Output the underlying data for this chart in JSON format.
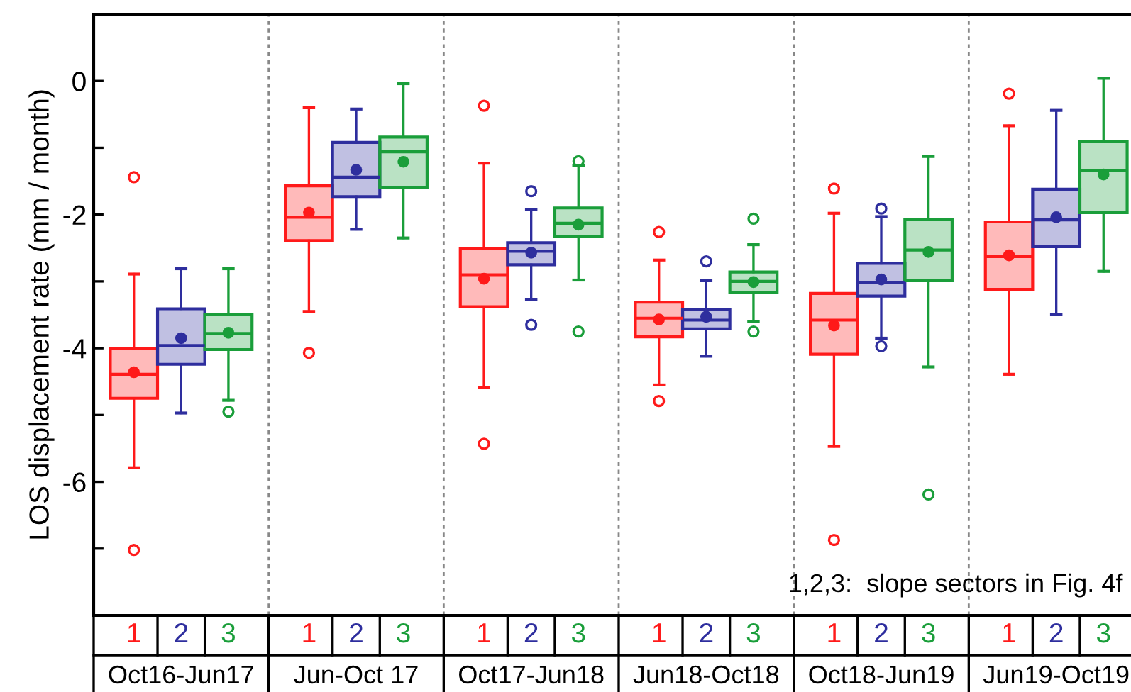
{
  "chart_data": {
    "type": "box",
    "ylabel": "LOS displacement rate (mm / month)",
    "categories": [
      "Oct16-Jun17",
      "Jun-Oct 17",
      "Oct17-Jun18",
      "Jun18-Oct18",
      "Oct18-Jun19",
      "Jun19-Oct19"
    ],
    "ylim": [
      -8,
      1
    ],
    "yticks": [
      0,
      {
        "value": -1,
        "label": null
      },
      -2,
      {
        "value": -3,
        "label": null
      },
      -4,
      {
        "value": -5,
        "label": null
      },
      -6,
      {
        "value": -7,
        "label": null
      }
    ],
    "grid": false,
    "annotations": [
      "1,2,3:  slope sectors in Fig. 4f"
    ],
    "series": [
      {
        "name": "1",
        "color": "#ff1a1a",
        "boxes": [
          {
            "low": -5.79,
            "q1": -4.75,
            "median": -4.39,
            "q3": -4.0,
            "high": -2.89,
            "mean": -4.36,
            "outliers": [
              -1.44,
              -7.02
            ]
          },
          {
            "low": -3.45,
            "q1": -2.39,
            "median": -2.04,
            "q3": -1.57,
            "high": -0.4,
            "mean": -1.97,
            "outliers": [
              -4.07
            ]
          },
          {
            "low": -4.59,
            "q1": -3.38,
            "median": -2.9,
            "q3": -2.51,
            "high": -1.23,
            "mean": -2.96,
            "outliers": [
              -0.37,
              -5.43
            ]
          },
          {
            "low": -4.55,
            "q1": -3.83,
            "median": -3.55,
            "q3": -3.31,
            "high": -2.68,
            "mean": -3.57,
            "outliers": [
              -2.26,
              -4.79
            ]
          },
          {
            "low": -5.47,
            "q1": -4.09,
            "median": -3.58,
            "q3": -3.18,
            "high": -1.98,
            "mean": -3.66,
            "outliers": [
              -1.61,
              -6.87
            ]
          },
          {
            "low": -4.39,
            "q1": -3.12,
            "median": -2.63,
            "q3": -2.11,
            "high": -0.67,
            "mean": -2.61,
            "outliers": [
              -0.19
            ]
          }
        ]
      },
      {
        "name": "2",
        "color": "#2e2e9e",
        "boxes": [
          {
            "low": -4.97,
            "q1": -4.24,
            "median": -3.96,
            "q3": -3.41,
            "high": -2.81,
            "mean": -3.85
          },
          {
            "low": -2.22,
            "q1": -1.73,
            "median": -1.44,
            "q3": -0.92,
            "high": -0.42,
            "mean": -1.33
          },
          {
            "low": -3.27,
            "q1": -2.75,
            "median": -2.55,
            "q3": -2.42,
            "high": -1.92,
            "mean": -2.57,
            "outliers": [
              -1.65,
              -3.65
            ]
          },
          {
            "low": -4.12,
            "q1": -3.71,
            "median": -3.58,
            "q3": -3.42,
            "high": -2.99,
            "mean": -3.53,
            "outliers": [
              -2.7
            ]
          },
          {
            "low": -3.85,
            "q1": -3.22,
            "median": -3.02,
            "q3": -2.73,
            "high": -2.03,
            "mean": -2.97,
            "outliers": [
              -1.91,
              -3.97
            ]
          },
          {
            "low": -3.49,
            "q1": -2.48,
            "median": -2.08,
            "q3": -1.62,
            "high": -0.44,
            "mean": -2.04
          }
        ]
      },
      {
        "name": "3",
        "color": "#1a9e3a",
        "boxes": [
          {
            "low": -4.78,
            "q1": -4.02,
            "median": -3.78,
            "q3": -3.5,
            "high": -2.81,
            "mean": -3.77,
            "outliers": [
              -4.95
            ]
          },
          {
            "low": -2.35,
            "q1": -1.59,
            "median": -1.06,
            "q3": -0.84,
            "high": -0.04,
            "mean": -1.21
          },
          {
            "low": -2.98,
            "q1": -2.33,
            "median": -2.13,
            "q3": -1.9,
            "high": -1.27,
            "mean": -2.15,
            "outliers": [
              -1.2,
              -3.75
            ]
          },
          {
            "low": -3.6,
            "q1": -3.16,
            "median": -3.0,
            "q3": -2.86,
            "high": -2.45,
            "mean": -3.01,
            "outliers": [
              -2.06,
              -3.75
            ]
          },
          {
            "low": -4.28,
            "q1": -2.99,
            "median": -2.53,
            "q3": -2.07,
            "high": -1.13,
            "mean": -2.56,
            "outliers": [
              -6.19
            ]
          },
          {
            "low": -2.85,
            "q1": -1.97,
            "median": -1.34,
            "q3": -0.91,
            "high": 0.04,
            "mean": -1.4
          }
        ]
      }
    ]
  }
}
